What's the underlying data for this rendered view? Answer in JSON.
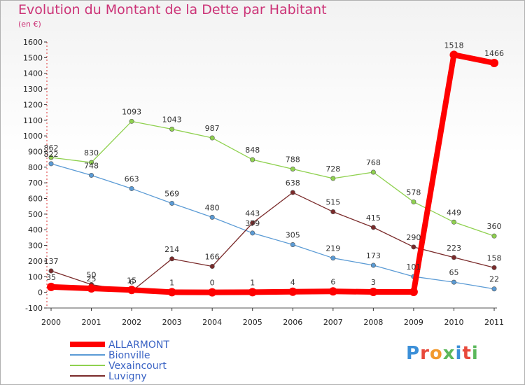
{
  "title": "Evolution du Montant de la Dette par Habitant",
  "subtitle": "(en €)",
  "logo_text": "Proxiti",
  "chart_data": {
    "type": "line",
    "title": "Evolution du Montant de la Dette par Habitant",
    "subtitle": "(en €)",
    "xlabel": "",
    "ylabel": "",
    "x": [
      "2000",
      "2001",
      "2002",
      "2003",
      "2004",
      "2005",
      "2006",
      "2007",
      "2008",
      "2009",
      "2010",
      "2011"
    ],
    "ylim": [
      -100,
      1600
    ],
    "yticks": [
      -100,
      0,
      100,
      200,
      300,
      400,
      500,
      600,
      700,
      800,
      900,
      1000,
      1100,
      1200,
      1300,
      1400,
      1500,
      1600
    ],
    "grid": false,
    "legend": "bottom-left",
    "series": [
      {
        "name": "ALLARMONT",
        "color": "#ff0000",
        "values": [
          35,
          25,
          15,
          1,
          0,
          1,
          4,
          6,
          3,
          3,
          1518,
          1466
        ],
        "labels": [
          "35",
          "25",
          "15",
          "1",
          "0",
          "1",
          "4",
          "6",
          "3",
          "",
          "1518",
          "1466"
        ]
      },
      {
        "name": "Bionville",
        "color": "#5b9bd5",
        "values": [
          822,
          748,
          663,
          569,
          480,
          379,
          305,
          219,
          173,
          101,
          65,
          22
        ],
        "labels": [
          "822",
          "748",
          "663",
          "569",
          "480",
          "379",
          "305",
          "219",
          "173",
          "101",
          "65",
          "22"
        ]
      },
      {
        "name": "Vexaincourt",
        "color": "#8fd14f",
        "values": [
          862,
          830,
          1093,
          1043,
          987,
          848,
          788,
          728,
          768,
          578,
          449,
          360
        ],
        "labels": [
          "862",
          "830",
          "1093",
          "1043",
          "987",
          "848",
          "788",
          "728",
          "768",
          "578",
          "449",
          "360"
        ]
      },
      {
        "name": "Luvigny",
        "color": "#7a2a2a",
        "values": [
          137,
          50,
          6,
          214,
          166,
          443,
          638,
          515,
          415,
          290,
          223,
          158
        ],
        "labels": [
          "137",
          "50",
          "6",
          "214",
          "166",
          "443",
          "638",
          "515",
          "415",
          "290",
          "223",
          "158"
        ]
      }
    ]
  }
}
